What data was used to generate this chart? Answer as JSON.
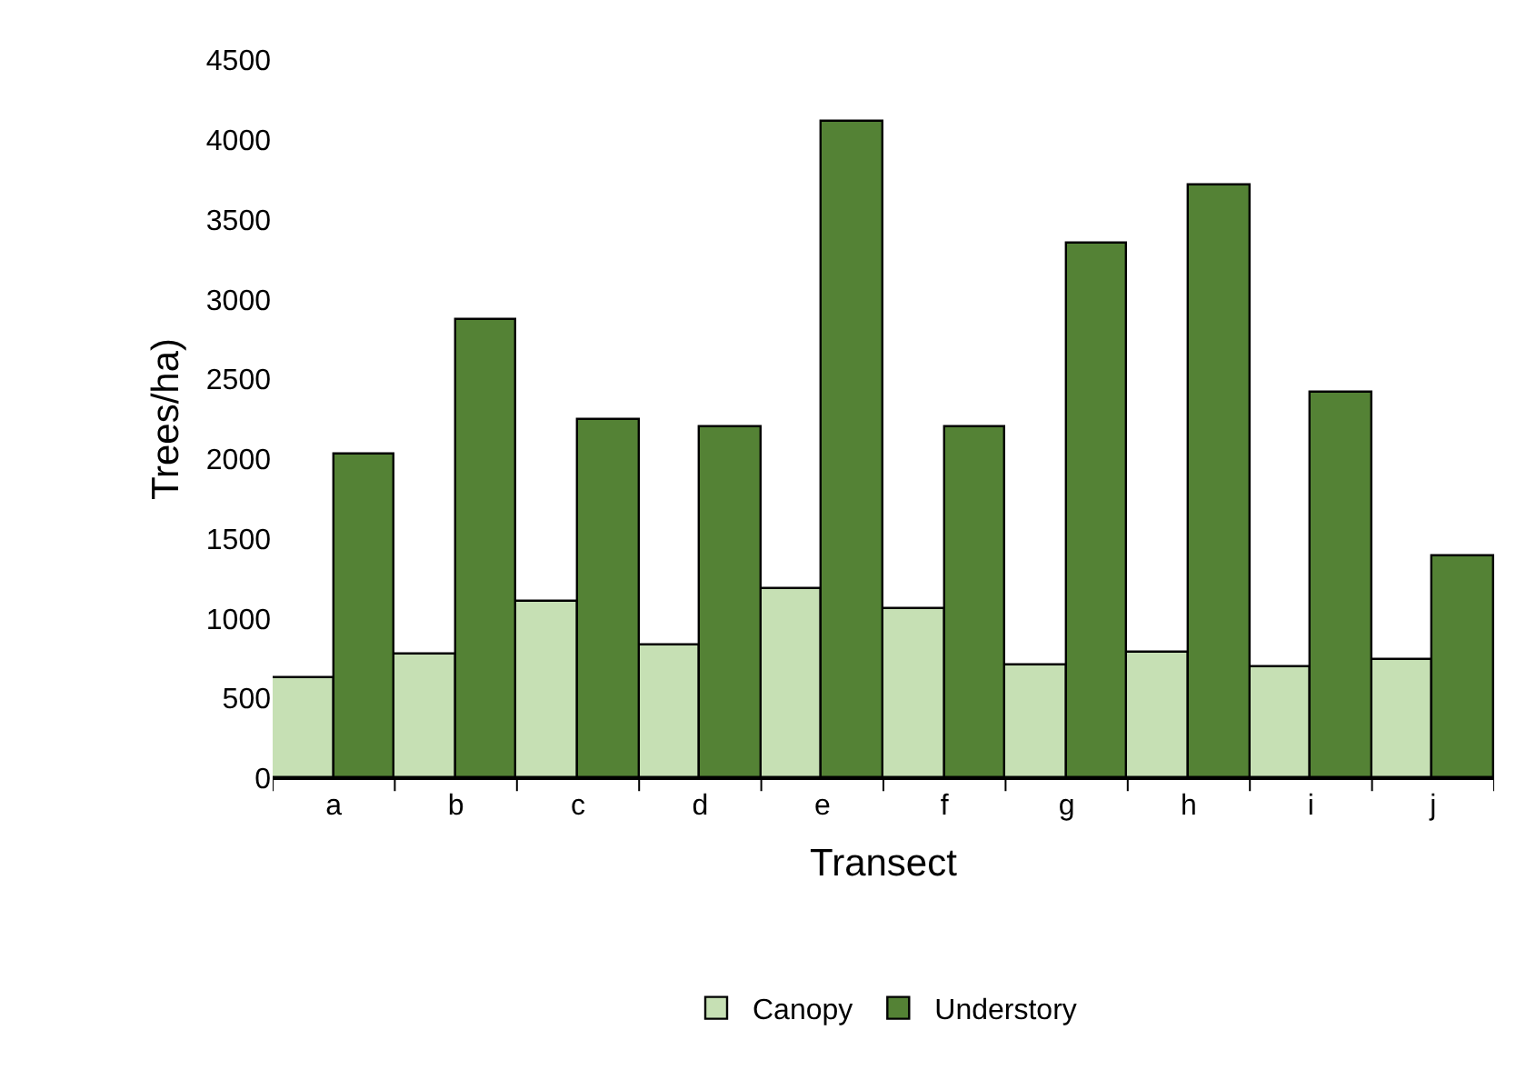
{
  "chart_data": {
    "type": "bar",
    "xlabel": "Transect",
    "ylabel": "Trees/ha)",
    "categories": [
      "a",
      "b",
      "c",
      "d",
      "e",
      "f",
      "g",
      "h",
      "i",
      "j"
    ],
    "series": [
      {
        "name": "Canopy",
        "color": "#c6e0b4",
        "values": [
          630,
          770,
          1100,
          830,
          1190,
          1060,
          710,
          790,
          690,
          740
        ]
      },
      {
        "name": "Understory",
        "color": "#548235",
        "values": [
          2030,
          2870,
          2250,
          2200,
          4110,
          2200,
          3350,
          3710,
          2410,
          1390
        ]
      }
    ],
    "ylim": [
      0,
      4500
    ],
    "yticks": [
      0,
      500,
      1000,
      1500,
      2000,
      2500,
      3000,
      3500,
      4000,
      4500
    ],
    "grid": false,
    "legend": "bottom"
  }
}
